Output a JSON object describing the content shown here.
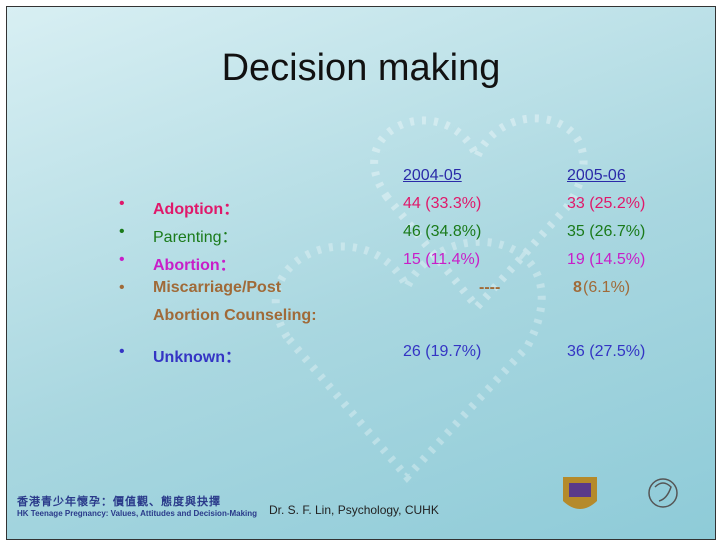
{
  "title": "Decision making",
  "table": {
    "columns": [
      "2004-05",
      "2005-06"
    ],
    "rows": [
      {
        "label": "Adoption：",
        "bold": true,
        "color": "#e0186a",
        "values": [
          "44 (33.3%)",
          "33 (25.2%)"
        ]
      },
      {
        "label": "Parenting：",
        "bold": false,
        "color": "#1a7a1a",
        "values": [
          "46 (34.8%)",
          "35 (26.7%)"
        ]
      },
      {
        "label": "Abortion：",
        "bold": true,
        "color": "#c81ec8",
        "values": [
          "15 (11.4%)",
          "19 (14.5%)"
        ]
      },
      {
        "label": "Miscarriage/Post",
        "label2": "Abortion Counseling:",
        "bold": true,
        "color": "#a06a38",
        "values": [
          "----",
          "(6.1%)"
        ],
        "value_bold": "8"
      },
      {
        "label": "Unknown：",
        "bold": true,
        "color": "#3434c4",
        "values": [
          "26 (19.7%)",
          "36 (27.5%)"
        ]
      }
    ]
  },
  "footer": {
    "logo_zh": "香港青少年懷孕：價值觀、態度與抉擇",
    "logo_en": "HK Teenage Pregnancy: Values, Attitudes and Decision-Making",
    "credit": "Dr. S. F. Lin, Psychology, CUHK"
  }
}
